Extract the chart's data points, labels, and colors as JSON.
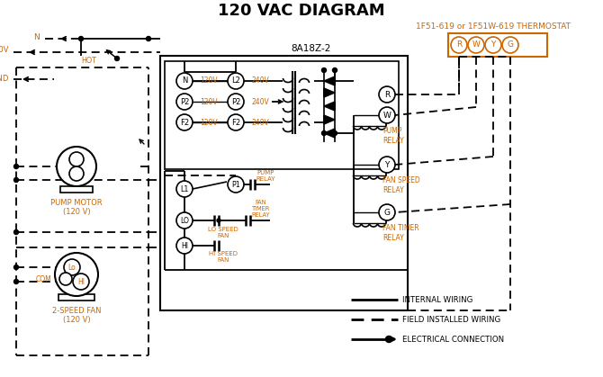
{
  "title": "120 VAC DIAGRAM",
  "background_color": "#ffffff",
  "line_color": "#000000",
  "orange_color": "#cc6600",
  "thermostat_label": "1F51-619 or 1F51W-619 THERMOSTAT",
  "control_box_label": "8A18Z-2",
  "legend_items": [
    {
      "label": "INTERNAL WIRING",
      "style": "solid"
    },
    {
      "label": "FIELD INSTALLED WIRING",
      "style": "dashed"
    },
    {
      "label": "ELECTRICAL CONNECTION",
      "style": "arrow"
    }
  ],
  "terminal_labels": [
    "R",
    "W",
    "Y",
    "G"
  ],
  "input_terminals": [
    {
      "label": "N",
      "volt": "120V"
    },
    {
      "label": "P2",
      "volt": "120V"
    },
    {
      "label": "F2",
      "volt": "120V"
    }
  ],
  "output_terminals": [
    {
      "label": "L2",
      "volt": "240V"
    },
    {
      "label": "P2",
      "volt": "240V"
    },
    {
      "label": "F2",
      "volt": "240V"
    }
  ],
  "right_relay_labels": [
    "PUMP\nRELAY",
    "FAN SPEED\nRELAY",
    "FAN TIMER\nRELAY"
  ]
}
